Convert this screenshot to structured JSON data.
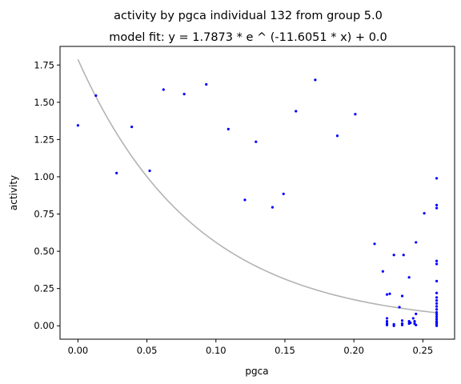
{
  "chart_data": {
    "type": "scatter",
    "title": "activity by pgca individual 132 from group 5.0",
    "subtitle": "model fit: y = 1.7873 * e ^ (-11.6051 * x) + 0.0",
    "xlabel": "pgca",
    "ylabel": "activity",
    "xlim": [
      -0.013,
      0.273
    ],
    "ylim": [
      -0.09,
      1.875
    ],
    "x_ticks": [
      "0.00",
      "0.05",
      "0.10",
      "0.15",
      "0.20",
      "0.25"
    ],
    "x_tick_values": [
      0.0,
      0.05,
      0.1,
      0.15,
      0.2,
      0.25
    ],
    "y_ticks": [
      "0.00",
      "0.25",
      "0.50",
      "0.75",
      "1.00",
      "1.25",
      "1.50",
      "1.75"
    ],
    "y_tick_values": [
      0.0,
      0.25,
      0.5,
      0.75,
      1.0,
      1.25,
      1.5,
      1.75
    ],
    "grid": false,
    "point_color": "#0000ff",
    "fit_color": "#b3b3b3",
    "fit": {
      "a": 1.7873,
      "b": -11.6051,
      "c": 0.0
    },
    "points": [
      [
        0.0,
        1.345
      ],
      [
        0.013,
        1.545
      ],
      [
        0.028,
        1.025
      ],
      [
        0.039,
        1.335
      ],
      [
        0.052,
        1.04
      ],
      [
        0.062,
        1.585
      ],
      [
        0.077,
        1.555
      ],
      [
        0.093,
        1.62
      ],
      [
        0.109,
        1.32
      ],
      [
        0.121,
        0.845
      ],
      [
        0.129,
        1.235
      ],
      [
        0.141,
        0.795
      ],
      [
        0.149,
        0.885
      ],
      [
        0.158,
        1.44
      ],
      [
        0.172,
        1.65
      ],
      [
        0.188,
        1.275
      ],
      [
        0.201,
        1.42
      ],
      [
        0.215,
        0.55
      ],
      [
        0.221,
        0.365
      ],
      [
        0.224,
        0.21
      ],
      [
        0.226,
        0.215
      ],
      [
        0.229,
        0.475
      ],
      [
        0.233,
        0.125
      ],
      [
        0.235,
        0.2
      ],
      [
        0.236,
        0.475
      ],
      [
        0.24,
        0.325
      ],
      [
        0.245,
        0.56
      ],
      [
        0.251,
        0.755
      ],
      [
        0.224,
        0.05
      ],
      [
        0.224,
        0.03
      ],
      [
        0.224,
        0.015
      ],
      [
        0.224,
        0.005
      ],
      [
        0.229,
        0.01
      ],
      [
        0.229,
        0.0
      ],
      [
        0.235,
        0.035
      ],
      [
        0.235,
        0.015
      ],
      [
        0.235,
        0.005
      ],
      [
        0.24,
        0.03
      ],
      [
        0.24,
        0.015
      ],
      [
        0.241,
        0.02
      ],
      [
        0.243,
        0.05
      ],
      [
        0.244,
        0.03
      ],
      [
        0.244,
        0.015
      ],
      [
        0.245,
        0.08
      ],
      [
        0.245,
        0.005
      ],
      [
        0.26,
        0.99
      ],
      [
        0.26,
        0.81
      ],
      [
        0.26,
        0.79
      ],
      [
        0.26,
        0.435
      ],
      [
        0.26,
        0.415
      ],
      [
        0.26,
        0.3
      ],
      [
        0.26,
        0.22
      ],
      [
        0.26,
        0.19
      ],
      [
        0.26,
        0.17
      ],
      [
        0.26,
        0.15
      ],
      [
        0.26,
        0.13
      ],
      [
        0.26,
        0.11
      ],
      [
        0.26,
        0.09
      ],
      [
        0.26,
        0.075
      ],
      [
        0.26,
        0.06
      ],
      [
        0.26,
        0.045
      ],
      [
        0.26,
        0.03
      ],
      [
        0.26,
        0.02
      ],
      [
        0.26,
        0.01
      ],
      [
        0.26,
        0.0
      ]
    ]
  }
}
